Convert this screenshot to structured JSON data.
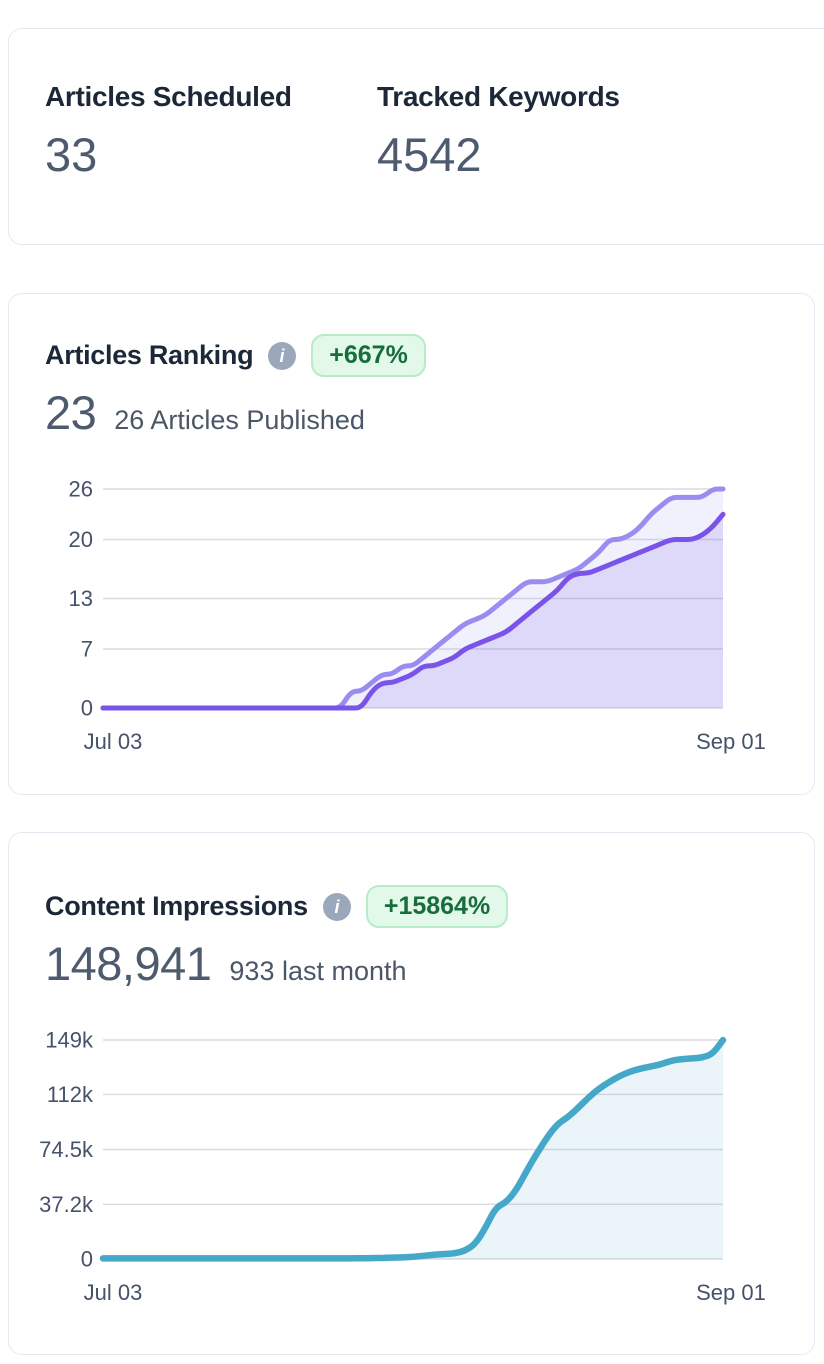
{
  "summary_card": {
    "stats": [
      {
        "label": "Articles Scheduled",
        "value": "33"
      },
      {
        "label": "Tracked Keywords",
        "value": "4542"
      }
    ]
  },
  "ranking_card": {
    "title": "Articles Ranking",
    "badge": "+667%",
    "value": "23",
    "subtitle": "26 Articles Published"
  },
  "impressions_card": {
    "title": "Content Impressions",
    "badge": "+15864%",
    "value": "148,941",
    "subtitle": "933 last month"
  },
  "icons": {
    "info": "info-icon"
  },
  "colors": {
    "badge_bg": "#e2f8e9",
    "badge_border": "#b8ecc8",
    "badge_text": "#176d3d",
    "title_text": "#1c2838",
    "value_text": "#4e5b6e",
    "muted_text": "#4b5768",
    "axis_text": "#46526b",
    "gridline": "#dadce1",
    "card_border": "#e3e9f0",
    "info_icon_bg": "#9ba7bb",
    "published_line": "#9b8cf1",
    "ranking_line": "#7a54e8",
    "impressions_line": "#46a8c8"
  },
  "chart_data": [
    {
      "type": "area",
      "title": "Articles Ranking",
      "x_tick_labels": [
        "Jul 03",
        "Sep 01"
      ],
      "x_points": 61,
      "y_ticks": [
        0,
        7,
        13,
        20,
        26
      ],
      "y_tick_labels": [
        "0",
        "7",
        "13",
        "20",
        "26"
      ],
      "ylim": [
        0,
        26
      ],
      "grid": true,
      "legend": "none",
      "series": [
        {
          "name": "Articles Published",
          "color": "#9b8cf1",
          "fill": "rgba(150,136,240,0.13)",
          "values": [
            0,
            0,
            0,
            0,
            0,
            0,
            0,
            0,
            0,
            0,
            0,
            0,
            0,
            0,
            0,
            0,
            0,
            0,
            0,
            0,
            0,
            0,
            0,
            0,
            2,
            2,
            3,
            4,
            4,
            5,
            5,
            6,
            7,
            8,
            9,
            10,
            10.5,
            11,
            12,
            13,
            14,
            15,
            15,
            15,
            15.5,
            16,
            16.5,
            17.5,
            18.5,
            20,
            20,
            20.5,
            21.5,
            23,
            24,
            25,
            25,
            25,
            25,
            26,
            26
          ]
        },
        {
          "name": "Articles Ranking",
          "color": "#7a54e8",
          "fill": "rgba(120,85,230,0.15)",
          "values": [
            0,
            0,
            0,
            0,
            0,
            0,
            0,
            0,
            0,
            0,
            0,
            0,
            0,
            0,
            0,
            0,
            0,
            0,
            0,
            0,
            0,
            0,
            0,
            0,
            0,
            0,
            2,
            3,
            3,
            3.5,
            4,
            5,
            5,
            5.5,
            6,
            7,
            7.5,
            8,
            8.5,
            9,
            10,
            11,
            12,
            13,
            14,
            15.5,
            16,
            16,
            16.5,
            17,
            17.5,
            18,
            18.5,
            19,
            19.5,
            20,
            20,
            20,
            20.5,
            21.5,
            23
          ]
        }
      ]
    },
    {
      "type": "area",
      "title": "Content Impressions",
      "x_tick_labels": [
        "Jul 03",
        "Sep 01"
      ],
      "x_points": 61,
      "y_ticks": [
        0,
        37200,
        74500,
        112000,
        149000
      ],
      "y_tick_labels": [
        "0",
        "37.2k",
        "74.5k",
        "112k",
        "149k"
      ],
      "ylim": [
        0,
        149000
      ],
      "grid": true,
      "legend": "none",
      "series": [
        {
          "name": "Content Impressions",
          "color": "#46a8c8",
          "fill": "rgba(70,168,200,0.11)",
          "values": [
            400,
            400,
            400,
            400,
            400,
            400,
            400,
            400,
            400,
            400,
            400,
            400,
            400,
            400,
            400,
            400,
            400,
            400,
            400,
            400,
            400,
            400,
            400,
            400,
            400,
            500,
            600,
            700,
            900,
            1100,
            1500,
            2200,
            2900,
            3300,
            3800,
            5500,
            10000,
            21000,
            35000,
            38500,
            47000,
            60000,
            72000,
            83000,
            92000,
            96500,
            103000,
            110000,
            116000,
            120500,
            124500,
            127500,
            129500,
            131000,
            132500,
            135000,
            136000,
            136500,
            137000,
            139500,
            148941
          ]
        }
      ]
    }
  ]
}
